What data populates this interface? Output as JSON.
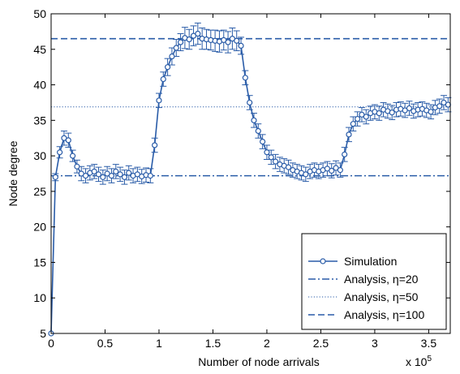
{
  "chart_data": {
    "type": "line",
    "title": "",
    "xlabel": "Number of node arrivals",
    "ylabel": "Node degree",
    "x_multiplier_label": "x 10",
    "x_multiplier_exponent": "5",
    "xlim": [
      0,
      3.7
    ],
    "ylim": [
      5,
      50
    ],
    "x_ticks": [
      0,
      0.5,
      1,
      1.5,
      2,
      2.5,
      3,
      3.5
    ],
    "x_tick_labels": [
      "0",
      "0.5",
      "1",
      "1.5",
      "2",
      "2.5",
      "3",
      "3.5"
    ],
    "y_ticks": [
      5,
      10,
      15,
      20,
      25,
      30,
      35,
      40,
      45,
      50
    ],
    "y_tick_labels": [
      "5",
      "10",
      "15",
      "20",
      "25",
      "30",
      "35",
      "40",
      "45",
      "50"
    ],
    "grid": false,
    "legend_position": "bottom-right",
    "colors": {
      "series": "#2a5ca8",
      "analysis": "#2a5ca8"
    },
    "series": [
      {
        "name": "Simulation",
        "style": "solid-circle-markers",
        "x": [
          0.0,
          0.04,
          0.08,
          0.12,
          0.16,
          0.2,
          0.24,
          0.28,
          0.32,
          0.36,
          0.4,
          0.44,
          0.48,
          0.52,
          0.56,
          0.6,
          0.64,
          0.68,
          0.72,
          0.76,
          0.8,
          0.84,
          0.88,
          0.92,
          0.96,
          1.0,
          1.04,
          1.08,
          1.12,
          1.16,
          1.2,
          1.24,
          1.28,
          1.32,
          1.36,
          1.4,
          1.44,
          1.48,
          1.52,
          1.56,
          1.6,
          1.64,
          1.68,
          1.72,
          1.76,
          1.8,
          1.84,
          1.88,
          1.92,
          1.96,
          2.0,
          2.04,
          2.08,
          2.12,
          2.16,
          2.2,
          2.24,
          2.28,
          2.32,
          2.36,
          2.4,
          2.44,
          2.48,
          2.52,
          2.56,
          2.6,
          2.64,
          2.68,
          2.72,
          2.76,
          2.8,
          2.84,
          2.88,
          2.92,
          2.96,
          3.0,
          3.04,
          3.08,
          3.12,
          3.16,
          3.2,
          3.24,
          3.28,
          3.32,
          3.36,
          3.4,
          3.44,
          3.48,
          3.52,
          3.56,
          3.6,
          3.64,
          3.68
        ],
        "y": [
          5.0,
          27.0,
          30.5,
          32.5,
          32.2,
          30.0,
          28.5,
          27.5,
          27.2,
          27.6,
          27.8,
          27.4,
          27.0,
          27.5,
          27.2,
          27.8,
          27.4,
          27.0,
          27.6,
          27.2,
          27.4,
          27.1,
          27.3,
          27.2,
          31.5,
          37.8,
          40.8,
          42.5,
          44.0,
          45.2,
          46.0,
          46.6,
          46.4,
          46.9,
          47.2,
          46.5,
          46.4,
          46.3,
          46.2,
          46.1,
          46.3,
          46.0,
          46.5,
          46.2,
          45.5,
          41.0,
          37.5,
          35.0,
          33.5,
          32.0,
          30.5,
          29.8,
          29.2,
          28.8,
          28.6,
          28.4,
          28.0,
          27.8,
          27.6,
          27.4,
          27.8,
          28.0,
          27.8,
          28.0,
          28.2,
          27.9,
          28.3,
          28.0,
          30.2,
          33.0,
          34.5,
          35.2,
          35.8,
          35.5,
          36.0,
          36.2,
          36.0,
          36.5,
          36.3,
          36.1,
          36.5,
          36.6,
          36.4,
          36.7,
          36.3,
          36.5,
          36.6,
          36.4,
          36.2,
          36.8,
          37.0,
          37.5,
          37.2
        ],
        "err": [
          0.0,
          0.5,
          0.8,
          1.0,
          1.0,
          0.8,
          0.9,
          1.0,
          1.0,
          1.0,
          1.0,
          1.0,
          1.0,
          1.0,
          1.0,
          1.0,
          1.0,
          1.0,
          1.0,
          1.0,
          1.0,
          1.0,
          1.0,
          1.0,
          1.0,
          1.0,
          1.0,
          1.2,
          1.2,
          1.2,
          1.2,
          1.5,
          1.4,
          1.4,
          1.5,
          1.5,
          1.4,
          1.4,
          1.5,
          1.5,
          1.4,
          1.5,
          1.5,
          1.4,
          1.2,
          1.0,
          1.0,
          1.0,
          1.0,
          1.0,
          1.0,
          1.0,
          1.0,
          1.0,
          1.0,
          1.0,
          1.0,
          1.0,
          1.0,
          1.0,
          1.0,
          1.0,
          1.0,
          1.0,
          1.0,
          1.0,
          1.0,
          1.0,
          1.0,
          1.0,
          1.0,
          1.0,
          1.0,
          1.0,
          1.0,
          1.0,
          1.0,
          1.0,
          1.0,
          1.0,
          1.0,
          1.0,
          1.0,
          1.0,
          1.0,
          1.0,
          1.0,
          1.0,
          1.0,
          1.0,
          1.0,
          1.0,
          1.0
        ]
      },
      {
        "name": "Analysis, η=20",
        "style": "dashdot",
        "y": 27.2
      },
      {
        "name": "Analysis, η=50",
        "style": "dotted",
        "y": 36.9
      },
      {
        "name": "Analysis, η=100",
        "style": "dashed",
        "y": 46.5
      }
    ]
  }
}
